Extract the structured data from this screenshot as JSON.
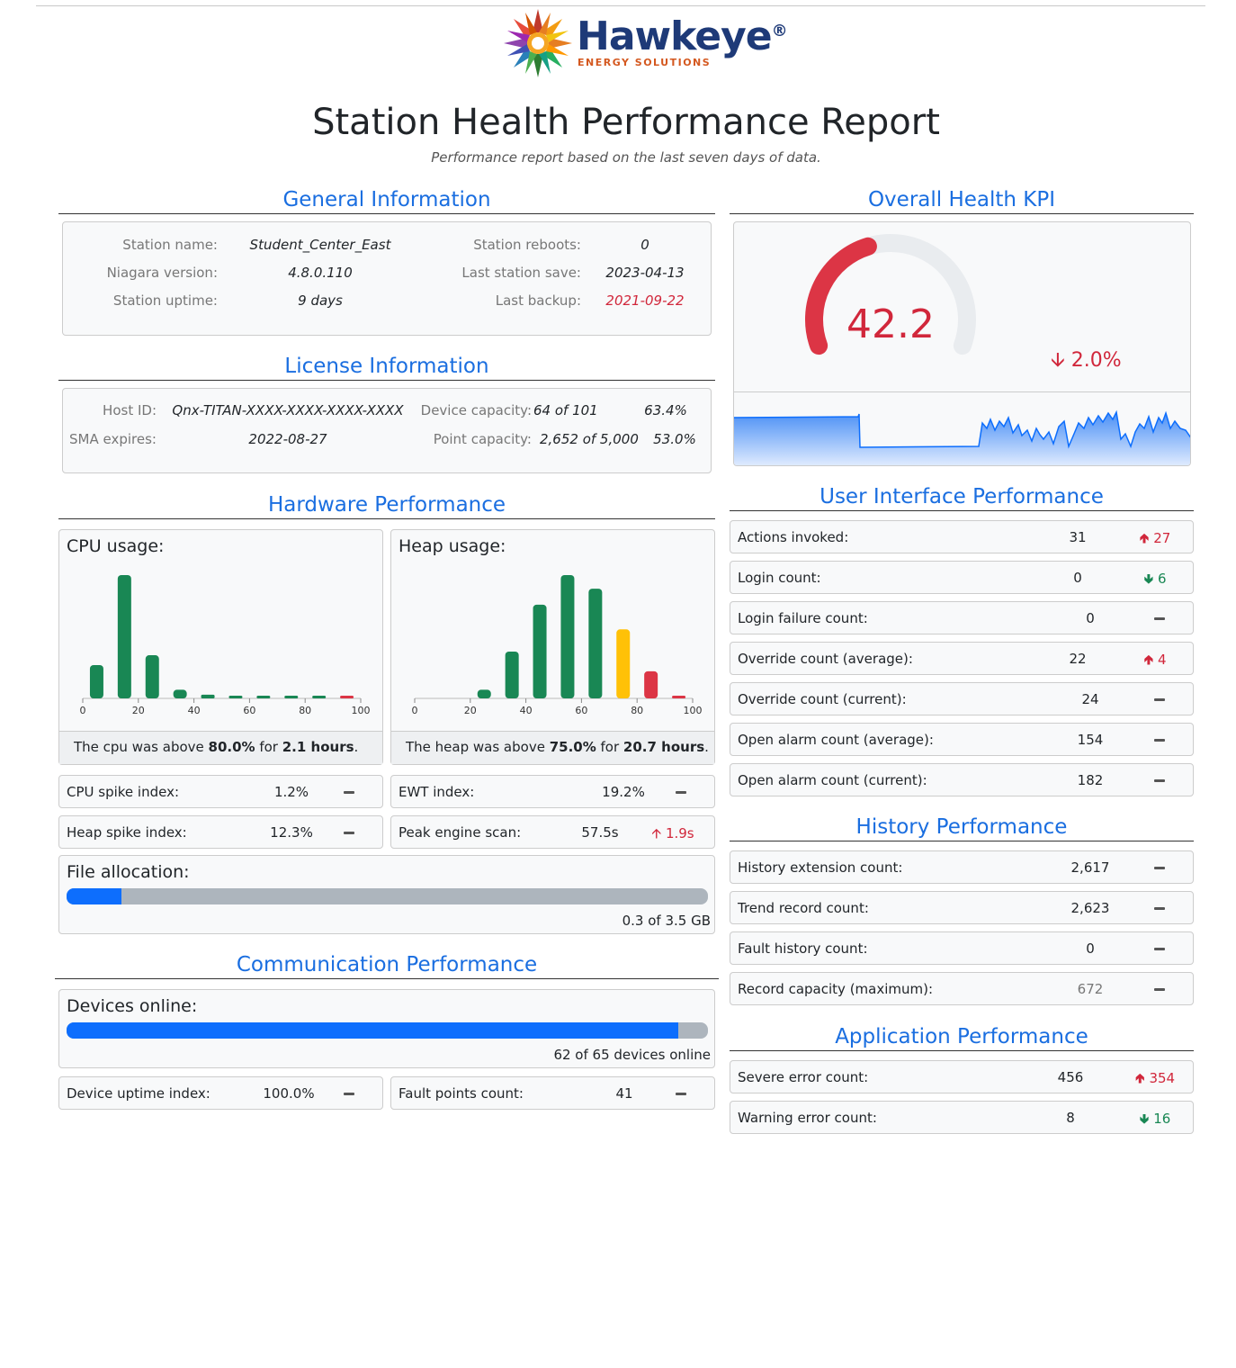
{
  "logo": {
    "word": "Hawkeye",
    "reg": "®",
    "sub": "ENERGY SOLUTIONS"
  },
  "title": "Station Health Performance Report",
  "subtitle": "Performance report based on the last seven days of data.",
  "general": {
    "title": "General Information",
    "rows": [
      {
        "label": "Station name:",
        "value": "Student_Center_East",
        "label2": "Station reboots:",
        "value2": "0"
      },
      {
        "label": "Niagara version:",
        "value": "4.8.0.110",
        "label2": "Last station save:",
        "value2": "2023-04-13"
      },
      {
        "label": "Station uptime:",
        "value": "9 days",
        "label2": "Last backup:",
        "value2": "2021-09-22"
      }
    ]
  },
  "license": {
    "title": "License Information",
    "host_label": "Host ID:",
    "host_value": "Qnx-TITAN-XXXX-XXXX-XXXX-XXXX",
    "sma_label": "SMA expires:",
    "sma_value": "2022-08-27",
    "device_label": "Device capacity:",
    "device_value": "64 of 101",
    "device_pct": "63.4%",
    "point_label": "Point capacity:",
    "point_value": "2,652 of 5,000",
    "point_pct": "53.0%"
  },
  "kpi": {
    "title": "Overall Health KPI",
    "value": "42.2",
    "value_num": 42.2,
    "change": "2.0%",
    "change_icon": "arrow-down-icon",
    "colors": {
      "gauge": "#dc3545",
      "track": "#e9ecef",
      "spark": "#0d6efd"
    }
  },
  "hardware": {
    "title": "Hardware Performance",
    "cpu_title": "CPU usage:",
    "cpu_note": {
      "pre": "The cpu was above ",
      "b1": "80.0%",
      "mid": " for ",
      "b2": "2.1 hours",
      "post": "."
    },
    "heap_title": "Heap usage:",
    "heap_note": {
      "pre": "The heap was above ",
      "b1": "75.0%",
      "mid": " for ",
      "b2": "20.7 hours",
      "post": "."
    },
    "metrics": [
      {
        "label": "CPU spike index:",
        "value": "1.2%",
        "trend": ""
      },
      {
        "label": "EWT index:",
        "value": "19.2%",
        "trend": ""
      },
      {
        "label": "Heap spike index:",
        "value": "12.3%",
        "trend": ""
      },
      {
        "label": "Peak engine scan:",
        "value": "57.5s",
        "trend": "1.9s"
      }
    ],
    "file_title": "File allocation:",
    "file_note": "0.3 of 3.5 GB",
    "file_fraction": 0.086
  },
  "communication": {
    "title": "Communication Performance",
    "devices_title": "Devices online:",
    "devices_note": "62 of 65 devices online",
    "devices_fraction": 0.954,
    "metrics": [
      {
        "label": "Device uptime index:",
        "value": "100.0%",
        "trend": ""
      },
      {
        "label": "Fault points count:",
        "value": "41",
        "trend": ""
      }
    ]
  },
  "ui_perf": {
    "title": "User Interface Performance",
    "rows": [
      {
        "label": "Actions invoked:",
        "value": "31",
        "trend": "27",
        "dir": "up"
      },
      {
        "label": "Login count:",
        "value": "0",
        "trend": "6",
        "dir": "down"
      },
      {
        "label": "Login failure count:",
        "value": "0",
        "trend": "",
        "dir": "none"
      },
      {
        "label": "Override count (average):",
        "value": "22",
        "trend": "4",
        "dir": "up"
      },
      {
        "label": "Override count (current):",
        "value": "24",
        "trend": "",
        "dir": "none"
      },
      {
        "label": "Open alarm count (average):",
        "value": "154",
        "trend": "",
        "dir": "none"
      },
      {
        "label": "Open alarm count (current):",
        "value": "182",
        "trend": "",
        "dir": "none"
      }
    ]
  },
  "history": {
    "title": "History Performance",
    "rows": [
      {
        "label": "History extension count:",
        "value": "2,617",
        "trend": "",
        "dir": "none"
      },
      {
        "label": "Trend record count:",
        "value": "2,623",
        "trend": "",
        "dir": "none"
      },
      {
        "label": "Fault history count:",
        "value": "0",
        "trend": "",
        "dir": "none"
      },
      {
        "label": "Record capacity (maximum):",
        "value": "672",
        "trend": "",
        "dir": "none"
      }
    ]
  },
  "application": {
    "title": "Application Performance",
    "rows": [
      {
        "label": "Severe error count:",
        "value": "456",
        "trend": "354",
        "dir": "up"
      },
      {
        "label": "Warning error count:",
        "value": "8",
        "trend": "16",
        "dir": "down"
      }
    ]
  },
  "chart_data": [
    {
      "type": "bar",
      "title": "CPU usage:",
      "x": [
        5,
        15,
        25,
        35,
        45,
        55,
        65,
        75,
        85,
        95
      ],
      "values": [
        27,
        100,
        35,
        7,
        3,
        2,
        1,
        0.3,
        0.3,
        1
      ],
      "bar_colors": [
        "#198754",
        "#198754",
        "#198754",
        "#198754",
        "#198754",
        "#198754",
        "#198754",
        "#198754",
        "#198754",
        "#dc3545"
      ],
      "xticks": [
        "0",
        "20",
        "40",
        "60",
        "80",
        "100"
      ],
      "xlim": [
        0,
        100
      ],
      "ylim": [
        0,
        100
      ]
    },
    {
      "type": "bar",
      "title": "Heap usage:",
      "x": [
        5,
        15,
        25,
        35,
        45,
        55,
        65,
        75,
        85,
        95
      ],
      "values": [
        0,
        0,
        7,
        38,
        76,
        100,
        89,
        56,
        22,
        2
      ],
      "bar_colors": [
        "#198754",
        "#198754",
        "#198754",
        "#198754",
        "#198754",
        "#198754",
        "#198754",
        "#ffc107",
        "#dc3545",
        "#dc3545"
      ],
      "xticks": [
        "0",
        "20",
        "40",
        "60",
        "80",
        "100"
      ],
      "xlim": [
        0,
        100
      ],
      "ylim": [
        0,
        100
      ]
    }
  ]
}
